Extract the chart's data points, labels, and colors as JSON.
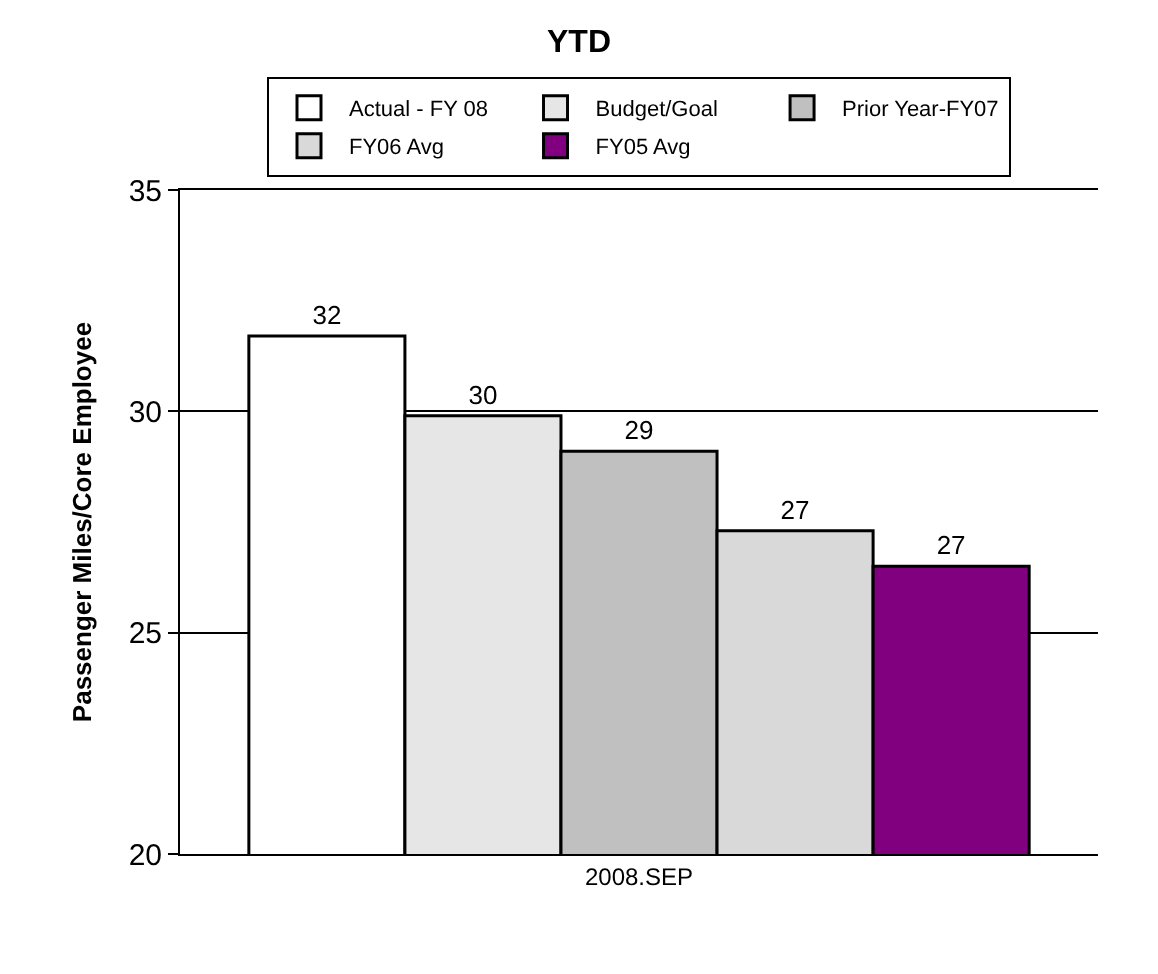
{
  "chart_data": {
    "type": "bar",
    "title": "YTD",
    "ylabel": "Passenger Miles/Core Employee",
    "categories": [
      "2008.SEP"
    ],
    "series": [
      {
        "name": "Actual - FY 08",
        "color": "#ffffff",
        "values": [
          31.7
        ],
        "value_labels": [
          "32"
        ]
      },
      {
        "name": "Budget/Goal",
        "color": "#e6e6e6",
        "values": [
          29.9
        ],
        "value_labels": [
          "30"
        ]
      },
      {
        "name": "Prior Year-FY07",
        "color": "#c0c0c0",
        "values": [
          29.1
        ],
        "value_labels": [
          "29"
        ]
      },
      {
        "name": "FY06 Avg",
        "color": "#d9d9d9",
        "values": [
          27.3
        ],
        "value_labels": [
          "27"
        ]
      },
      {
        "name": "FY05 Avg",
        "color": "#800080",
        "values": [
          26.5
        ],
        "value_labels": [
          "27"
        ]
      }
    ],
    "ylim": [
      20,
      35
    ],
    "yticks": [
      20,
      25,
      30,
      35
    ],
    "grid": "y",
    "legend": "top"
  }
}
